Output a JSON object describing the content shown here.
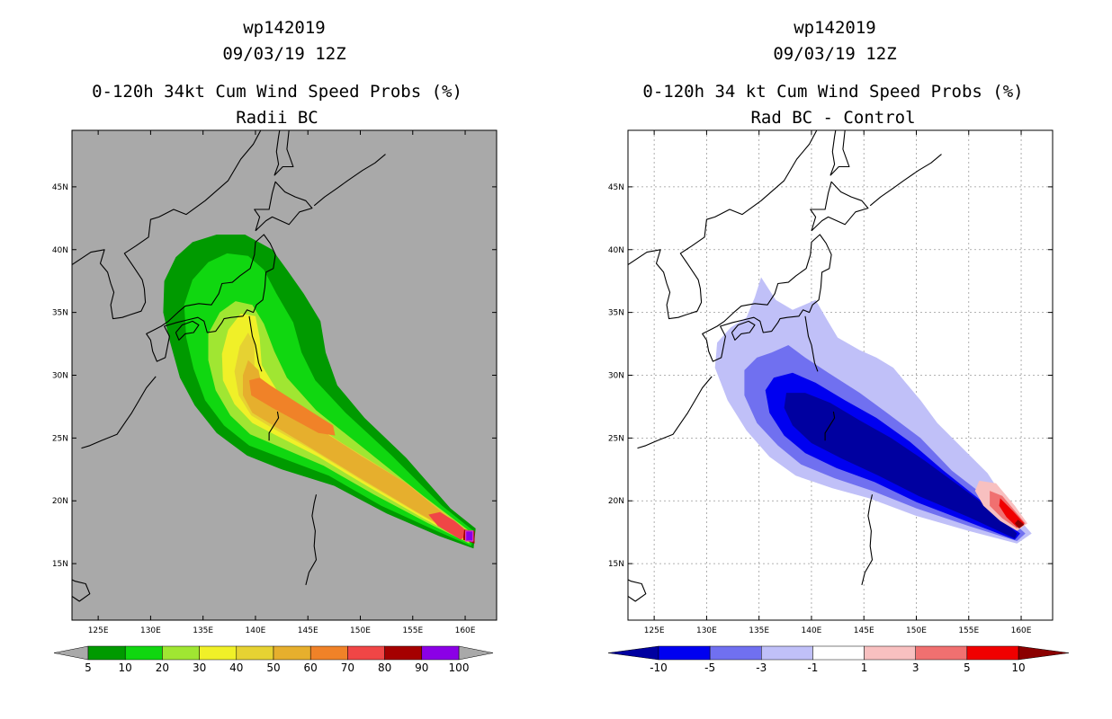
{
  "chart_data": [
    {
      "type": "map-contour",
      "title_lines": [
        "wp142019",
        "09/03/19 12Z",
        "0-120h 34kt Cum Wind Speed Probs (%)",
        "Radii BC"
      ],
      "x_ticks": [
        "125E",
        "130E",
        "135E",
        "140E",
        "145E",
        "150E",
        "155E",
        "160E"
      ],
      "y_ticks": [
        "15N",
        "20N",
        "25N",
        "30N",
        "35N",
        "40N",
        "45N"
      ],
      "lon_range": [
        122.5,
        163
      ],
      "lat_range": [
        10.5,
        49.5
      ],
      "background": "#a9a9a9",
      "levels": [
        "5",
        "10",
        "20",
        "30",
        "40",
        "50",
        "60",
        "70",
        "80",
        "90",
        "100"
      ],
      "colors": [
        "#009a00",
        "#10d710",
        "#a0e632",
        "#f0f028",
        "#e6d232",
        "#e6af2d",
        "#f08228",
        "#f04646",
        "#a50000",
        "#8b00e6"
      ],
      "storm_center": {
        "lon": 160.4,
        "lat": 17.1
      }
    },
    {
      "type": "map-contour",
      "title_lines": [
        "wp142019",
        "09/03/19 12Z",
        "0-120h 34 kt Cum Wind Speed Probs (%)",
        "Rad BC - Control"
      ],
      "x_ticks": [
        "125E",
        "130E",
        "135E",
        "140E",
        "145E",
        "150E",
        "155E",
        "160E"
      ],
      "y_ticks": [
        "15N",
        "20N",
        "25N",
        "30N",
        "35N",
        "40N",
        "45N"
      ],
      "lon_range": [
        122.5,
        163
      ],
      "lat_range": [
        10.5,
        49.5
      ],
      "background": "#ffffff",
      "levels": [
        "-10",
        "-5",
        "-3",
        "-1",
        "1",
        "3",
        "5",
        "10"
      ],
      "colors": [
        "#0000a0",
        "#0000f0",
        "#7070f0",
        "#c0c0f8",
        "#ffffff",
        "#f8c0c0",
        "#f07070",
        "#f00000",
        "#8b0000"
      ]
    }
  ]
}
